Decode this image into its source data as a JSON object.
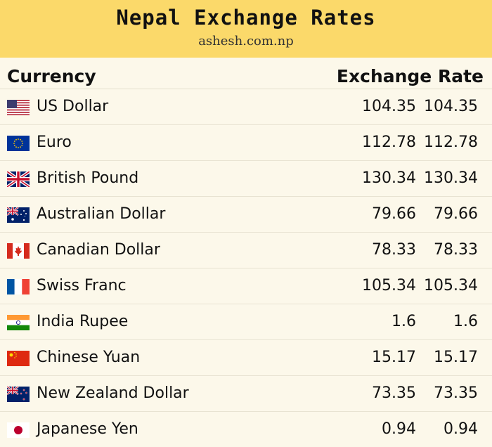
{
  "header": {
    "title": "Nepal Exchange Rates",
    "subtitle": "ashesh.com.np",
    "bg_color": "#fbd96a"
  },
  "table": {
    "col_currency": "Currency",
    "col_rate": "Exchange Rate",
    "rows": [
      {
        "name": "US Dollar",
        "buy": "104.35",
        "sell": "104.35",
        "flag": "us-flag-icon"
      },
      {
        "name": "Euro",
        "buy": "112.78",
        "sell": "112.78",
        "flag": "eu-flag-icon"
      },
      {
        "name": "British Pound",
        "buy": "130.34",
        "sell": "130.34",
        "flag": "uk-flag-icon"
      },
      {
        "name": "Australian Dollar",
        "buy": "79.66",
        "sell": "79.66",
        "flag": "au-flag-icon"
      },
      {
        "name": "Canadian Dollar",
        "buy": "78.33",
        "sell": "78.33",
        "flag": "ca-flag-icon"
      },
      {
        "name": "Swiss Franc",
        "buy": "105.34",
        "sell": "105.34",
        "flag": "fr-flag-icon"
      },
      {
        "name": "India Rupee",
        "buy": "1.6",
        "sell": "1.6",
        "flag": "in-flag-icon"
      },
      {
        "name": "Chinese Yuan",
        "buy": "15.17",
        "sell": "15.17",
        "flag": "cn-flag-icon"
      },
      {
        "name": "New Zealand Dollar",
        "buy": "73.35",
        "sell": "73.35",
        "flag": "nz-flag-icon"
      },
      {
        "name": "Japanese Yen",
        "buy": "0.94",
        "sell": "0.94",
        "flag": "jp-flag-icon"
      }
    ]
  }
}
